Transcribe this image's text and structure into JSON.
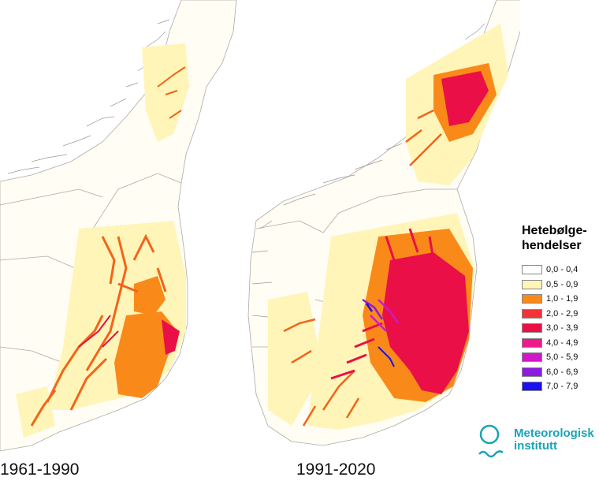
{
  "maps": {
    "left": {
      "period": "1961-1990"
    },
    "right": {
      "period": "1991-2020"
    }
  },
  "legend": {
    "title_line1": "Hetebølge-",
    "title_line2": "hendelser",
    "items": [
      {
        "label": "0,0 - 0,4",
        "color": "#ffffff"
      },
      {
        "label": "0,5 - 0,9",
        "color": "#fff5b8"
      },
      {
        "label": "1,0 - 1,9",
        "color": "#f98a1a"
      },
      {
        "label": "2,0 - 2,9",
        "color": "#f2333a"
      },
      {
        "label": "3,0 - 3,9",
        "color": "#ea0f46"
      },
      {
        "label": "4,0 - 4,9",
        "color": "#ee1a8a"
      },
      {
        "label": "5,0 - 5,9",
        "color": "#cf18c8"
      },
      {
        "label": "6,0 - 6,9",
        "color": "#8f1ae0"
      },
      {
        "label": "7,0 - 7,9",
        "color": "#1a10f2"
      }
    ]
  },
  "logo": {
    "line1": "Meteorologisk",
    "line2": "institutt",
    "color": "#1aa3b8"
  }
}
